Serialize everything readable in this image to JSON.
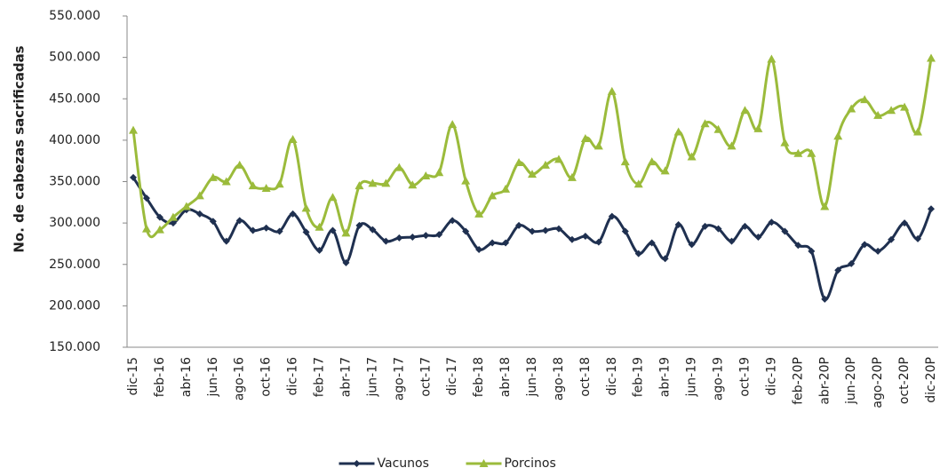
{
  "chart_data": {
    "type": "line",
    "y_label": "No. de cabezas sacrificadas",
    "categories": [
      "dic-15",
      null,
      "feb-16",
      null,
      "abr-16",
      null,
      "jun-16",
      null,
      "ago-16",
      null,
      "oct-16",
      null,
      "dic-16",
      null,
      "feb-17",
      null,
      "abr-17",
      null,
      "jun-17",
      null,
      "ago-17",
      null,
      "oct-17",
      null,
      "dic-17",
      null,
      "feb-18",
      null,
      "abr-18",
      null,
      "jun-18",
      null,
      "ago-18",
      null,
      "oct-18",
      null,
      "dic-18",
      null,
      "feb-19",
      null,
      "abr-19",
      null,
      "jun-19",
      null,
      "ago-19",
      null,
      "oct-19",
      null,
      "dic-19",
      null,
      "feb-20P",
      null,
      "abr-20P",
      null,
      "jun-20P",
      null,
      "ago-20P",
      null,
      "oct-20P",
      null,
      "dic-20P"
    ],
    "series": [
      {
        "name": "Vacunos",
        "color": "#1f3050",
        "marker": "diamond",
        "values": [
          355000,
          330000,
          307000,
          300000,
          316000,
          311000,
          302000,
          278000,
          303000,
          291000,
          294000,
          290000,
          311000,
          289000,
          267000,
          291000,
          252000,
          297000,
          292000,
          278000,
          282000,
          283000,
          285000,
          286000,
          303000,
          290000,
          268000,
          276000,
          276000,
          297000,
          290000,
          291000,
          293000,
          280000,
          284000,
          277000,
          308000,
          290000,
          263000,
          276000,
          257000,
          298000,
          274000,
          296000,
          293000,
          278000,
          296000,
          283000,
          301000,
          290000,
          273000,
          266000,
          208000,
          243000,
          251000,
          274000,
          266000,
          280000,
          300000,
          281000,
          317000
        ]
      },
      {
        "name": "Porcinos",
        "color": "#9bbb3b",
        "marker": "triangle",
        "values": [
          412000,
          293000,
          292000,
          307000,
          320000,
          333000,
          355000,
          350000,
          370000,
          345000,
          342000,
          347000,
          401000,
          318000,
          295000,
          331000,
          288000,
          345000,
          348000,
          348000,
          367000,
          346000,
          357000,
          361000,
          419000,
          351000,
          311000,
          333000,
          341000,
          373000,
          359000,
          370000,
          377000,
          355000,
          402000,
          393000,
          459000,
          374000,
          347000,
          374000,
          363000,
          410000,
          380000,
          420000,
          413000,
          393000,
          436000,
          414000,
          498000,
          397000,
          384000,
          384000,
          320000,
          405000,
          438000,
          449000,
          430000,
          436000,
          440000,
          410000,
          499000
        ]
      }
    ],
    "ylim": [
      150000,
      550000
    ],
    "yticks": [
      {
        "value": 150000,
        "label": "150.000"
      },
      {
        "value": 200000,
        "label": "200.000"
      },
      {
        "value": 250000,
        "label": "250.000"
      },
      {
        "value": 300000,
        "label": "300.000"
      },
      {
        "value": 350000,
        "label": "350.000"
      },
      {
        "value": 400000,
        "label": "400.000"
      },
      {
        "value": 450000,
        "label": "450.000"
      },
      {
        "value": 500000,
        "label": "500.000"
      },
      {
        "value": 550000,
        "label": "550.000"
      }
    ],
    "grid": false,
    "legend": "bottom",
    "smooth": true
  }
}
